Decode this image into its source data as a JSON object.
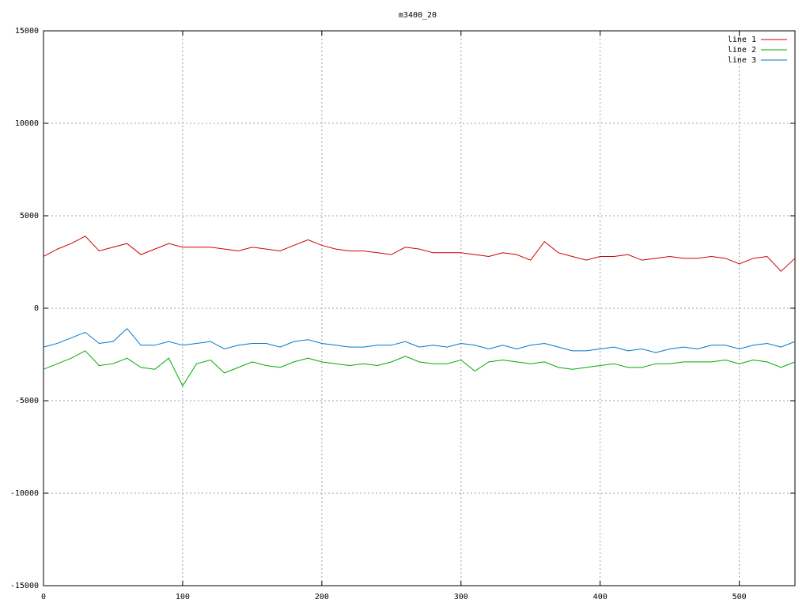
{
  "chart_data": {
    "type": "line",
    "title": "m3400_20",
    "x": [
      0,
      10,
      20,
      30,
      40,
      50,
      60,
      70,
      80,
      90,
      100,
      110,
      120,
      130,
      140,
      150,
      160,
      170,
      180,
      190,
      200,
      210,
      220,
      230,
      240,
      250,
      260,
      270,
      280,
      290,
      300,
      310,
      320,
      330,
      340,
      350,
      360,
      370,
      380,
      390,
      400,
      410,
      420,
      430,
      440,
      450,
      460,
      470,
      480,
      490,
      500,
      510,
      520,
      530,
      540
    ],
    "series": [
      {
        "name": "line 1",
        "color": "#cc0000",
        "values": [
          2800,
          3200,
          3500,
          3900,
          3100,
          3300,
          3500,
          2900,
          3200,
          3500,
          3300,
          3300,
          3300,
          3200,
          3100,
          3300,
          3200,
          3100,
          3400,
          3700,
          3400,
          3200,
          3100,
          3100,
          3000,
          2900,
          3300,
          3200,
          3000,
          3000,
          3000,
          2900,
          2800,
          3000,
          2900,
          2600,
          3600,
          3000,
          2800,
          2600,
          2800,
          2800,
          2900,
          2600,
          2700,
          2800,
          2700,
          2700,
          2800,
          2700,
          2400,
          2700,
          2800,
          2000,
          2700
        ]
      },
      {
        "name": "line 2",
        "color": "#00aa00",
        "values": [
          -3300,
          -3000,
          -2700,
          -2300,
          -3100,
          -3000,
          -2700,
          -3200,
          -3300,
          -2700,
          -4200,
          -3000,
          -2800,
          -3500,
          -3200,
          -2900,
          -3100,
          -3200,
          -2900,
          -2700,
          -2900,
          -3000,
          -3100,
          -3000,
          -3100,
          -2900,
          -2600,
          -2900,
          -3000,
          -3000,
          -2800,
          -3400,
          -2900,
          -2800,
          -2900,
          -3000,
          -2900,
          -3200,
          -3300,
          -3200,
          -3100,
          -3000,
          -3200,
          -3200,
          -3000,
          -3000,
          -2900,
          -2900,
          -2900,
          -2800,
          -3000,
          -2800,
          -2900,
          -3200,
          -2900
        ]
      },
      {
        "name": "line 3",
        "color": "#0077cc",
        "values": [
          -2100,
          -1900,
          -1600,
          -1300,
          -1900,
          -1800,
          -1100,
          -2000,
          -2000,
          -1800,
          -2000,
          -1900,
          -1800,
          -2200,
          -2000,
          -1900,
          -1900,
          -2100,
          -1800,
          -1700,
          -1900,
          -2000,
          -2100,
          -2100,
          -2000,
          -2000,
          -1800,
          -2100,
          -2000,
          -2100,
          -1900,
          -2000,
          -2200,
          -2000,
          -2200,
          -2000,
          -1900,
          -2100,
          -2300,
          -2300,
          -2200,
          -2100,
          -2300,
          -2200,
          -2400,
          -2200,
          -2100,
          -2200,
          -2000,
          -2000,
          -2200,
          -2000,
          -1900,
          -2100,
          -1800
        ]
      }
    ],
    "xlim": [
      0,
      540
    ],
    "xticks": [
      0,
      100,
      200,
      300,
      400,
      500
    ],
    "ylim": [
      -15000,
      15000
    ],
    "yticks": [
      -15000,
      -10000,
      -5000,
      0,
      5000,
      10000,
      15000
    ],
    "grid": true,
    "legend": "top-right"
  }
}
